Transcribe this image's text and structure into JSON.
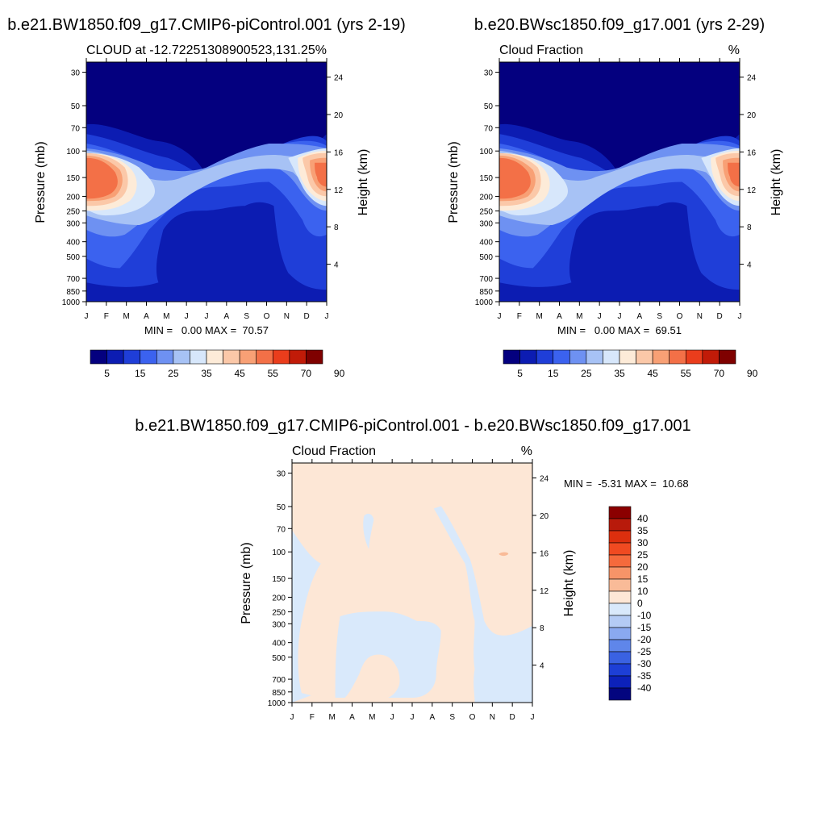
{
  "chart_data": [
    {
      "type": "heatmap",
      "title": "b.e21.BW1850.f09_g17.CMIP6-piControl.001 (yrs 2-19)",
      "subtitle_left": "CLOUD at -12.72251308900523,131.25",
      "subtitle_right": "%",
      "ylabel": "Pressure (mb)",
      "y2label": "Height (km)",
      "xticks": [
        "J",
        "F",
        "M",
        "A",
        "M",
        "J",
        "J",
        "A",
        "S",
        "O",
        "N",
        "D",
        "J"
      ],
      "pressure_ticks": [
        "30",
        "50",
        "70",
        "100",
        "150",
        "200",
        "250",
        "300",
        "400",
        "500",
        "700",
        "850",
        "1000"
      ],
      "height_ticks": [
        "24",
        "20",
        "16",
        "12",
        "8",
        "4"
      ],
      "stats": "MIN =   0.00 MAX =  70.57",
      "min": 0.0,
      "max": 70.57,
      "colorbar_labels": [
        "5",
        "15",
        "25",
        "35",
        "45",
        "55",
        "70",
        "90"
      ],
      "colorbar_colors": [
        "#04007f",
        "#0c1cb2",
        "#1f3ed8",
        "#3b62ef",
        "#6e91f2",
        "#a7c2f5",
        "#d7e7fb",
        "#fdebd8",
        "#fbc8a8",
        "#f8a075",
        "#f37047",
        "#ea3d1c",
        "#c11b08",
        "#7f0100"
      ]
    },
    {
      "type": "heatmap",
      "title": "b.e20.BWsc1850.f09_g17.001 (yrs 2-29)",
      "subtitle_left": "Cloud Fraction",
      "subtitle_right": "%",
      "ylabel": "Pressure (mb)",
      "y2label": "Height (km)",
      "xticks": [
        "J",
        "F",
        "M",
        "A",
        "M",
        "J",
        "J",
        "A",
        "S",
        "O",
        "N",
        "D",
        "J"
      ],
      "pressure_ticks": [
        "30",
        "50",
        "70",
        "100",
        "150",
        "200",
        "250",
        "300",
        "400",
        "500",
        "700",
        "850",
        "1000"
      ],
      "height_ticks": [
        "24",
        "20",
        "16",
        "12",
        "8",
        "4"
      ],
      "stats": "MIN =   0.00 MAX =  69.51",
      "min": 0.0,
      "max": 69.51,
      "colorbar_labels": [
        "5",
        "15",
        "25",
        "35",
        "45",
        "55",
        "70",
        "90"
      ],
      "colorbar_colors": [
        "#04007f",
        "#0c1cb2",
        "#1f3ed8",
        "#3b62ef",
        "#6e91f2",
        "#a7c2f5",
        "#d7e7fb",
        "#fdebd8",
        "#fbc8a8",
        "#f8a075",
        "#f37047",
        "#ea3d1c",
        "#c11b08",
        "#7f0100"
      ]
    },
    {
      "type": "heatmap",
      "title": "b.e21.BW1850.f09_g17.CMIP6-piControl.001 - b.e20.BWsc1850.f09_g17.001",
      "subtitle_left": "Cloud Fraction",
      "subtitle_right": "%",
      "ylabel": "Pressure (mb)",
      "y2label": "Height (km)",
      "xticks": [
        "J",
        "F",
        "M",
        "A",
        "M",
        "J",
        "J",
        "A",
        "S",
        "O",
        "N",
        "D",
        "J"
      ],
      "pressure_ticks": [
        "30",
        "50",
        "70",
        "100",
        "150",
        "200",
        "250",
        "300",
        "400",
        "500",
        "700",
        "850",
        "1000"
      ],
      "height_ticks": [
        "24",
        "20",
        "16",
        "12",
        "8",
        "4"
      ],
      "stats": "MIN =  -5.31 MAX =  10.68",
      "min": -5.31,
      "max": 10.68,
      "colorbar_labels": [
        "40",
        "35",
        "30",
        "25",
        "20",
        "15",
        "10",
        "0",
        "-10",
        "-15",
        "-20",
        "-25",
        "-30",
        "-35",
        "-40"
      ],
      "colorbar_colors": [
        "#8b0000",
        "#b81a0b",
        "#dc2f0e",
        "#f04a21",
        "#f56a3c",
        "#f79468",
        "#f9bb98",
        "#fde7d6",
        "#d9e9fb",
        "#b4cbf5",
        "#8aa9f0",
        "#5f86ea",
        "#3a62e2",
        "#1d3fd6",
        "#0c21ba",
        "#03057f"
      ],
      "fill_positive": "#fde7d6",
      "fill_negative": "#d9e9fb"
    }
  ]
}
